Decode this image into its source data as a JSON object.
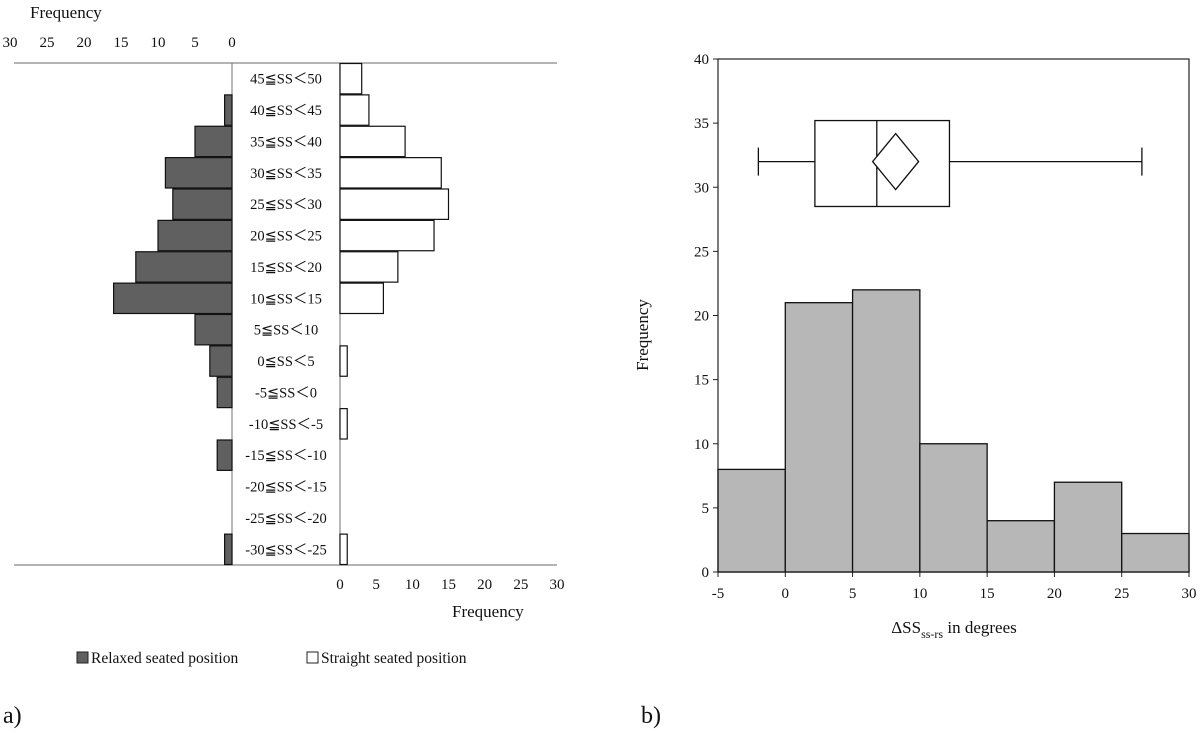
{
  "chart_data": [
    {
      "type": "bar",
      "panel_label": "a)",
      "orientation": "horizontal-back-to-back",
      "categories": [
        "45≦SS＜50",
        "40≦SS＜45",
        "35≦SS＜40",
        "30≦SS＜35",
        "25≦SS＜30",
        "20≦SS＜25",
        "15≦SS＜20",
        "10≦SS＜15",
        "5≦SS＜10",
        "0≦SS＜5",
        "-5≦SS＜0",
        "-10≦SS＜-5",
        "-15≦SS＜-10",
        "-20≦SS＜-15",
        "-25≦SS＜-20",
        "-30≦SS＜-25"
      ],
      "series": [
        {
          "name": "Relaxed seated position",
          "color": "#606060",
          "values": [
            0,
            1,
            5,
            9,
            8,
            10,
            13,
            16,
            5,
            3,
            2,
            0,
            2,
            0,
            0,
            1
          ]
        },
        {
          "name": "Straight seated position",
          "color": "#ffffff",
          "values": [
            3,
            4,
            9,
            14,
            15,
            13,
            8,
            6,
            0,
            1,
            0,
            1,
            0,
            0,
            0,
            1
          ]
        }
      ],
      "top_axis_label": "Frequency",
      "bottom_axis_label": "Frequency",
      "left_ticks": [
        "30",
        "25",
        "20",
        "15",
        "10",
        "5",
        "0"
      ],
      "right_ticks": [
        "0",
        "5",
        "10",
        "15",
        "20",
        "25",
        "30"
      ],
      "xlim": [
        0,
        30
      ],
      "legend_placement": "bottom"
    },
    {
      "type": "bar",
      "panel_label": "b)",
      "histogram_bins": [
        -5,
        0,
        5,
        10,
        15,
        20,
        25,
        30
      ],
      "values": [
        8,
        21,
        22,
        10,
        4,
        7,
        3
      ],
      "bar_color": "#b7b7b7",
      "xlabel_main": "ΔSS",
      "xlabel_sub": "ss-rs",
      "xlabel_suffix": " in degrees",
      "ylabel": "Frequency",
      "xlim": [
        -5,
        30
      ],
      "ylim": [
        0,
        40
      ],
      "x_ticks": [
        "-5",
        "0",
        "5",
        "10",
        "15",
        "20",
        "25",
        "30"
      ],
      "y_ticks": [
        "0",
        "5",
        "10",
        "15",
        "20",
        "25",
        "30",
        "35",
        "40"
      ],
      "boxplot": {
        "whisker_low": -2,
        "q1": 2.2,
        "median": 6.8,
        "q3": 12.2,
        "whisker_high": 26.5,
        "mean": 8.2,
        "y_level": 32,
        "box_y_range": [
          28.5,
          35.2
        ]
      }
    }
  ]
}
